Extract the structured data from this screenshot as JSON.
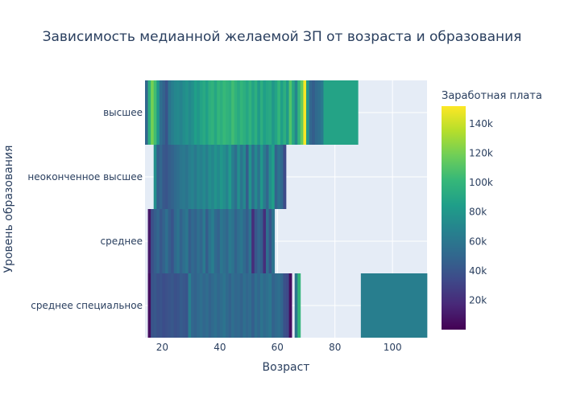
{
  "chart_data": {
    "type": "heatmap",
    "title": "Зависимость медианной желаемой ЗП от возраста и образования",
    "xlabel": "Возраст",
    "ylabel": "Уровень образования",
    "xlim": [
      14,
      112
    ],
    "x_ticks": [
      20,
      40,
      60,
      80,
      100
    ],
    "x_tick_labels": [
      "20",
      "40",
      "60",
      "80",
      "100"
    ],
    "y_categories": [
      "высшее",
      "неоконченное высшее",
      "среднее",
      "среднее специальное"
    ],
    "grid": true,
    "colorscale": "Viridis",
    "colorbar": {
      "title": "Заработная плата",
      "range": [
        0,
        152000
      ],
      "ticks": [
        20000,
        40000,
        60000,
        80000,
        100000,
        120000,
        140000
      ],
      "tick_labels": [
        "20k",
        "40k",
        "60k",
        "80k",
        "100k",
        "120k",
        "140k"
      ],
      "colors": [
        "#440154",
        "#482878",
        "#3e4989",
        "#31688e",
        "#26828e",
        "#1f9e89",
        "#35b779",
        "#6ece58",
        "#b5de2b",
        "#fde725"
      ]
    },
    "rows": [
      {
        "category": "высшее",
        "cells": [
          [
            14,
            15,
            50000
          ],
          [
            15,
            16,
            95000
          ],
          [
            16,
            17,
            120000
          ],
          [
            17,
            18,
            105000
          ],
          [
            18,
            19,
            80000
          ],
          [
            19,
            20,
            55000
          ],
          [
            20,
            21,
            48000
          ],
          [
            21,
            22,
            40000
          ],
          [
            22,
            23,
            58000
          ],
          [
            23,
            24,
            65000
          ],
          [
            24,
            25,
            70000
          ],
          [
            25,
            26,
            72000
          ],
          [
            26,
            27,
            68000
          ],
          [
            27,
            28,
            74000
          ],
          [
            28,
            29,
            78000
          ],
          [
            29,
            30,
            72000
          ],
          [
            30,
            31,
            76000
          ],
          [
            31,
            32,
            85000
          ],
          [
            32,
            33,
            80000
          ],
          [
            33,
            34,
            88000
          ],
          [
            34,
            35,
            92000
          ],
          [
            35,
            36,
            86000
          ],
          [
            36,
            37,
            95000
          ],
          [
            37,
            38,
            98000
          ],
          [
            38,
            39,
            90000
          ],
          [
            39,
            40,
            100000
          ],
          [
            40,
            41,
            95000
          ],
          [
            41,
            42,
            102000
          ],
          [
            42,
            43,
            98000
          ],
          [
            43,
            44,
            95000
          ],
          [
            44,
            45,
            105000
          ],
          [
            45,
            46,
            98000
          ],
          [
            46,
            47,
            92000
          ],
          [
            47,
            48,
            100000
          ],
          [
            48,
            49,
            95000
          ],
          [
            49,
            50,
            90000
          ],
          [
            50,
            51,
            98000
          ],
          [
            51,
            52,
            88000
          ],
          [
            52,
            53,
            96000
          ],
          [
            53,
            54,
            82000
          ],
          [
            54,
            55,
            95000
          ],
          [
            55,
            56,
            85000
          ],
          [
            56,
            57,
            90000
          ],
          [
            57,
            58,
            92000
          ],
          [
            58,
            59,
            80000
          ],
          [
            59,
            60,
            88000
          ],
          [
            60,
            61,
            100000
          ],
          [
            61,
            62,
            85000
          ],
          [
            62,
            63,
            95000
          ],
          [
            63,
            64,
            82000
          ],
          [
            64,
            65,
            110000
          ],
          [
            65,
            66,
            90000
          ],
          [
            66,
            67,
            70000
          ],
          [
            67,
            68,
            100000
          ],
          [
            68,
            69,
            115000
          ],
          [
            69,
            70,
            150000
          ],
          [
            70,
            71,
            80000
          ],
          [
            71,
            72,
            50000
          ],
          [
            72,
            73,
            45000
          ],
          [
            73,
            74,
            52000
          ],
          [
            74,
            75,
            55000
          ],
          [
            75,
            76,
            62000
          ],
          [
            76,
            88,
            88000
          ]
        ]
      },
      {
        "category": "неоконченное высшее",
        "cells": [
          [
            17,
            18,
            75000
          ],
          [
            18,
            19,
            45000
          ],
          [
            19,
            20,
            50000
          ],
          [
            20,
            21,
            42000
          ],
          [
            21,
            22,
            40000
          ],
          [
            22,
            23,
            45000
          ],
          [
            23,
            24,
            48000
          ],
          [
            24,
            25,
            52000
          ],
          [
            25,
            26,
            55000
          ],
          [
            26,
            27,
            60000
          ],
          [
            27,
            28,
            62000
          ],
          [
            28,
            29,
            58000
          ],
          [
            29,
            30,
            65000
          ],
          [
            30,
            31,
            68000
          ],
          [
            31,
            32,
            62000
          ],
          [
            32,
            33,
            70000
          ],
          [
            33,
            34,
            66000
          ],
          [
            34,
            35,
            72000
          ],
          [
            35,
            36,
            65000
          ],
          [
            36,
            37,
            75000
          ],
          [
            37,
            38,
            70000
          ],
          [
            38,
            39,
            78000
          ],
          [
            39,
            40,
            72000
          ],
          [
            40,
            41,
            80000
          ],
          [
            41,
            42,
            75000
          ],
          [
            42,
            43,
            68000
          ],
          [
            43,
            44,
            82000
          ],
          [
            44,
            45,
            65000
          ],
          [
            45,
            46,
            55000
          ],
          [
            46,
            47,
            75000
          ],
          [
            47,
            48,
            60000
          ],
          [
            48,
            49,
            70000
          ],
          [
            49,
            50,
            45000
          ],
          [
            50,
            51,
            78000
          ],
          [
            51,
            52,
            55000
          ],
          [
            52,
            53,
            72000
          ],
          [
            53,
            54,
            58000
          ],
          [
            54,
            55,
            80000
          ],
          [
            55,
            56,
            62000
          ],
          [
            56,
            57,
            50000
          ],
          [
            57,
            58,
            75000
          ],
          [
            58,
            59,
            85000
          ],
          [
            59,
            60,
            48000
          ],
          [
            60,
            61,
            58000
          ],
          [
            61,
            62,
            52000
          ],
          [
            62,
            63,
            35000
          ]
        ]
      },
      {
        "category": "среднее",
        "cells": [
          [
            15,
            16,
            10000
          ],
          [
            16,
            17,
            38000
          ],
          [
            17,
            18,
            45000
          ],
          [
            18,
            19,
            50000
          ],
          [
            19,
            20,
            42000
          ],
          [
            20,
            21,
            48000
          ],
          [
            21,
            22,
            55000
          ],
          [
            22,
            23,
            45000
          ],
          [
            23,
            24,
            40000
          ],
          [
            24,
            25,
            52000
          ],
          [
            25,
            26,
            58000
          ],
          [
            26,
            27,
            48000
          ],
          [
            27,
            28,
            55000
          ],
          [
            28,
            29,
            60000
          ],
          [
            29,
            30,
            45000
          ],
          [
            30,
            31,
            52000
          ],
          [
            31,
            32,
            48000
          ],
          [
            32,
            33,
            56000
          ],
          [
            33,
            34,
            50000
          ],
          [
            34,
            35,
            62000
          ],
          [
            35,
            36,
            45000
          ],
          [
            36,
            37,
            58000
          ],
          [
            37,
            38,
            65000
          ],
          [
            38,
            39,
            52000
          ],
          [
            39,
            40,
            48000
          ],
          [
            40,
            41,
            60000
          ],
          [
            41,
            42,
            55000
          ],
          [
            42,
            43,
            50000
          ],
          [
            43,
            44,
            62000
          ],
          [
            44,
            45,
            58000
          ],
          [
            45,
            46,
            48000
          ],
          [
            46,
            47,
            55000
          ],
          [
            47,
            48,
            60000
          ],
          [
            48,
            49,
            52000
          ],
          [
            49,
            50,
            45000
          ],
          [
            50,
            51,
            58000
          ],
          [
            51,
            52,
            20000
          ],
          [
            52,
            53,
            42000
          ],
          [
            53,
            54,
            50000
          ],
          [
            54,
            55,
            45000
          ],
          [
            55,
            56,
            20000
          ],
          [
            56,
            57,
            55000
          ],
          [
            57,
            58,
            40000
          ],
          [
            58,
            59,
            58000
          ]
        ]
      },
      {
        "category": "среднее специальное",
        "cells": [
          [
            15,
            16,
            5000
          ],
          [
            16,
            17,
            40000
          ],
          [
            17,
            18,
            42000
          ],
          [
            18,
            19,
            38000
          ],
          [
            19,
            20,
            40000
          ],
          [
            20,
            21,
            36000
          ],
          [
            21,
            22,
            38000
          ],
          [
            22,
            23,
            40000
          ],
          [
            23,
            24,
            42000
          ],
          [
            24,
            25,
            38000
          ],
          [
            25,
            26,
            40000
          ],
          [
            26,
            27,
            44000
          ],
          [
            27,
            28,
            42000
          ],
          [
            28,
            29,
            40000
          ],
          [
            29,
            30,
            65000
          ],
          [
            30,
            31,
            50000
          ],
          [
            31,
            32,
            48000
          ],
          [
            32,
            33,
            52000
          ],
          [
            33,
            34,
            55000
          ],
          [
            34,
            35,
            50000
          ],
          [
            35,
            36,
            54000
          ],
          [
            36,
            37,
            48000
          ],
          [
            37,
            38,
            52000
          ],
          [
            38,
            39,
            56000
          ],
          [
            39,
            40,
            50000
          ],
          [
            40,
            41,
            54000
          ],
          [
            41,
            42,
            58000
          ],
          [
            42,
            43,
            52000
          ],
          [
            43,
            44,
            48000
          ],
          [
            44,
            45,
            55000
          ],
          [
            45,
            46,
            50000
          ],
          [
            46,
            47,
            52000
          ],
          [
            47,
            48,
            48000
          ],
          [
            48,
            49,
            55000
          ],
          [
            49,
            50,
            50000
          ],
          [
            50,
            51,
            54000
          ],
          [
            51,
            52,
            46000
          ],
          [
            52,
            53,
            55000
          ],
          [
            53,
            54,
            50000
          ],
          [
            54,
            55,
            58000
          ],
          [
            55,
            56,
            52000
          ],
          [
            56,
            57,
            55000
          ],
          [
            57,
            58,
            60000
          ],
          [
            58,
            59,
            48000
          ],
          [
            59,
            60,
            52000
          ],
          [
            60,
            61,
            55000
          ],
          [
            61,
            62,
            50000
          ],
          [
            62,
            63,
            38000
          ],
          [
            63,
            64,
            35000
          ],
          [
            64,
            65,
            5000
          ],
          [
            66,
            67,
            60000
          ],
          [
            67,
            68,
            100000
          ],
          [
            89,
            112,
            65000
          ]
        ]
      }
    ]
  }
}
